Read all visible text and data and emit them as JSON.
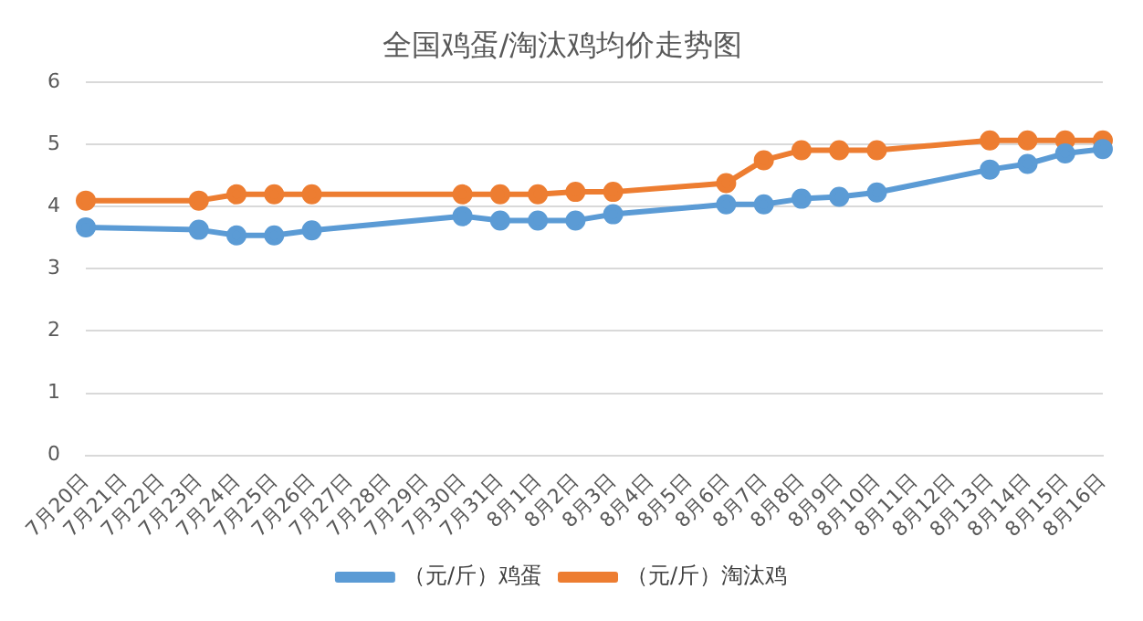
{
  "chart_data": {
    "type": "line",
    "title": "全国鸡蛋/淘汰鸡均价走势图",
    "categories": [
      "7月20日",
      "7月21日",
      "7月22日",
      "7月23日",
      "7月24日",
      "7月25日",
      "7月26日",
      "7月27日",
      "7月28日",
      "7月29日",
      "7月30日",
      "7月31日",
      "8月1日",
      "8月2日",
      "8月3日",
      "8月4日",
      "8月5日",
      "8月6日",
      "8月7日",
      "8月8日",
      "8月9日",
      "8月10日",
      "8月11日",
      "8月12日",
      "8月13日",
      "8月14日",
      "8月15日",
      "8月16日"
    ],
    "series": [
      {
        "name": "（元/斤）鸡蛋",
        "color": "#5b9bd5",
        "values": [
          3.67,
          null,
          null,
          3.63,
          3.54,
          3.54,
          3.62,
          null,
          null,
          null,
          3.85,
          3.78,
          3.78,
          3.78,
          3.88,
          null,
          null,
          4.04,
          4.04,
          4.13,
          4.16,
          4.23,
          null,
          null,
          4.6,
          4.69,
          4.86,
          4.93
        ]
      },
      {
        "name": "（元/斤）淘汰鸡",
        "color": "#ed7d31",
        "values": [
          4.1,
          null,
          null,
          4.1,
          4.2,
          4.2,
          4.2,
          null,
          null,
          null,
          4.2,
          4.2,
          4.2,
          4.24,
          4.24,
          null,
          null,
          4.38,
          4.75,
          4.91,
          4.91,
          4.91,
          null,
          null,
          5.07,
          5.07,
          5.07,
          5.07
        ]
      }
    ],
    "ylim": [
      0,
      6
    ],
    "yticks": [
      0,
      1,
      2,
      3,
      4,
      5,
      6
    ],
    "grid": "y",
    "legend": "bottom",
    "marker": "circle",
    "line_style": "solid"
  }
}
